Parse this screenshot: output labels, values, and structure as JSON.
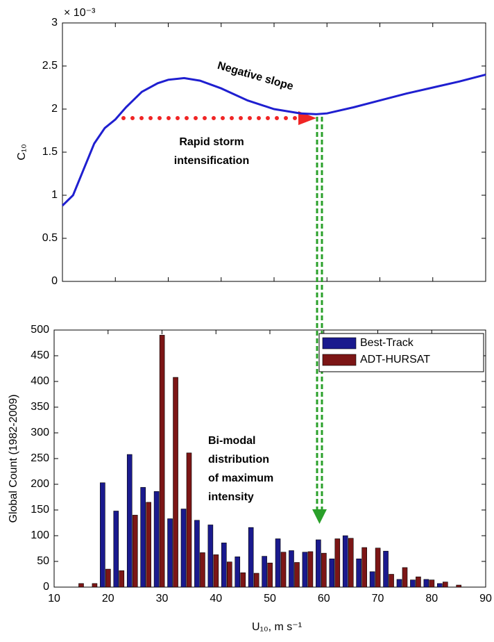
{
  "chart_data": [
    {
      "type": "line",
      "ylabel": "C₁₀",
      "yscale_label": "× 10⁻³",
      "x": [
        10,
        12,
        14,
        16,
        18,
        20,
        22,
        25,
        28,
        30,
        33,
        36,
        40,
        45,
        50,
        55,
        58,
        60,
        65,
        70,
        75,
        80,
        85,
        90
      ],
      "values": [
        0.88,
        1.0,
        1.3,
        1.6,
        1.78,
        1.88,
        2.02,
        2.2,
        2.3,
        2.34,
        2.36,
        2.33,
        2.24,
        2.1,
        2.0,
        1.95,
        1.94,
        1.95,
        2.02,
        2.1,
        2.18,
        2.25,
        2.32,
        2.4
      ],
      "color": "#1f1fd0",
      "xlim": [
        10,
        90
      ],
      "xticks": [
        10,
        20,
        30,
        40,
        50,
        60,
        70,
        80,
        90
      ],
      "show_xtick_labels": false,
      "ylim": [
        0,
        3
      ],
      "yticks": [
        0,
        0.5,
        1,
        1.5,
        2,
        2.5,
        3
      ],
      "annotations": [
        {
          "lines": [
            "Negative slope"
          ],
          "color": "#f02525"
        },
        {
          "lines": [
            "Rapid storm",
            "intensification"
          ],
          "color": "#f02525"
        }
      ]
    },
    {
      "type": "bar",
      "xlabel": "U₁₀, m s⁻¹",
      "ylabel": "Global Count (1982-2009)",
      "x": [
        14.5,
        17,
        19.5,
        22,
        24.5,
        27,
        29.5,
        32,
        34.5,
        37,
        39.5,
        42,
        44.5,
        47,
        49.5,
        52,
        54.5,
        57,
        59.5,
        62,
        64.5,
        67,
        69.5,
        72,
        74.5,
        77,
        79.5,
        82,
        84.5
      ],
      "series": [
        {
          "name": "Best-Track",
          "color": "#1a1a8e",
          "values": [
            0,
            0,
            203,
            148,
            258,
            194,
            186,
            133,
            152,
            130,
            121,
            86,
            59,
            116,
            60,
            94,
            71,
            68,
            92,
            55,
            100,
            55,
            30,
            70,
            15,
            14,
            15,
            7,
            0
          ]
        },
        {
          "name": "ADT-HURSAT",
          "color": "#7c1616",
          "values": [
            7,
            7,
            35,
            32,
            140,
            165,
            490,
            408,
            261,
            67,
            63,
            49,
            28,
            27,
            47,
            68,
            48,
            69,
            66,
            94,
            95,
            77,
            76,
            25,
            38,
            20,
            14,
            10,
            4
          ]
        }
      ],
      "xlim": [
        10,
        90
      ],
      "xticks": [
        10,
        20,
        30,
        40,
        50,
        60,
        70,
        80,
        90
      ],
      "show_xtick_labels": true,
      "ylim": [
        0,
        500
      ],
      "yticks": [
        0,
        50,
        100,
        150,
        200,
        250,
        300,
        350,
        400,
        450,
        500
      ],
      "legend": "upper right",
      "annotations": [
        {
          "lines": [
            "Bi-modal",
            "distribution",
            "of maximum",
            "intensity"
          ],
          "color": "#2aa02a"
        }
      ]
    }
  ]
}
